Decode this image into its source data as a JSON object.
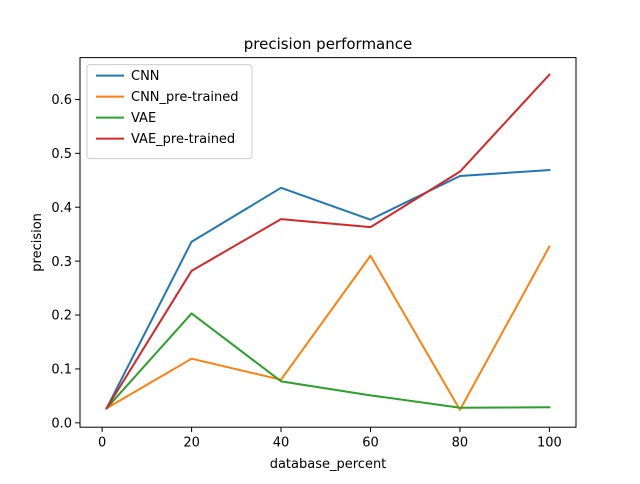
{
  "chart_data": {
    "type": "line",
    "title": "precision performance",
    "xlabel": "database_percent",
    "ylabel": "precision",
    "xlim": [
      -4.95,
      105.95
    ],
    "ylim": [
      -0.0081,
      0.6776
    ],
    "x_ticks": [
      0,
      20,
      40,
      60,
      80,
      100
    ],
    "x_tick_labels": [
      "0",
      "20",
      "40",
      "60",
      "80",
      "100"
    ],
    "y_ticks": [
      0.0,
      0.1,
      0.2,
      0.3,
      0.4,
      0.5,
      0.6
    ],
    "y_tick_labels": [
      "0.0",
      "0.1",
      "0.2",
      "0.3",
      "0.4",
      "0.5",
      "0.6"
    ],
    "grid": false,
    "legend_position": "top-left",
    "x": [
      1,
      20,
      40,
      60,
      80,
      100
    ],
    "series": [
      {
        "name": "CNN",
        "color": "#1f77b4",
        "values": [
          0.027,
          0.336,
          0.436,
          0.377,
          0.458,
          0.469
        ]
      },
      {
        "name": "CNN_pre-trained",
        "color": "#ff7f0e",
        "values": [
          0.027,
          0.119,
          0.08,
          0.31,
          0.024,
          0.327
        ]
      },
      {
        "name": "VAE",
        "color": "#2ca02c",
        "values": [
          0.027,
          0.203,
          0.077,
          0.051,
          0.028,
          0.029
        ]
      },
      {
        "name": "VAE_pre-trained",
        "color": "#d62728",
        "values": [
          0.027,
          0.282,
          0.378,
          0.363,
          0.466,
          0.646
        ]
      }
    ]
  }
}
